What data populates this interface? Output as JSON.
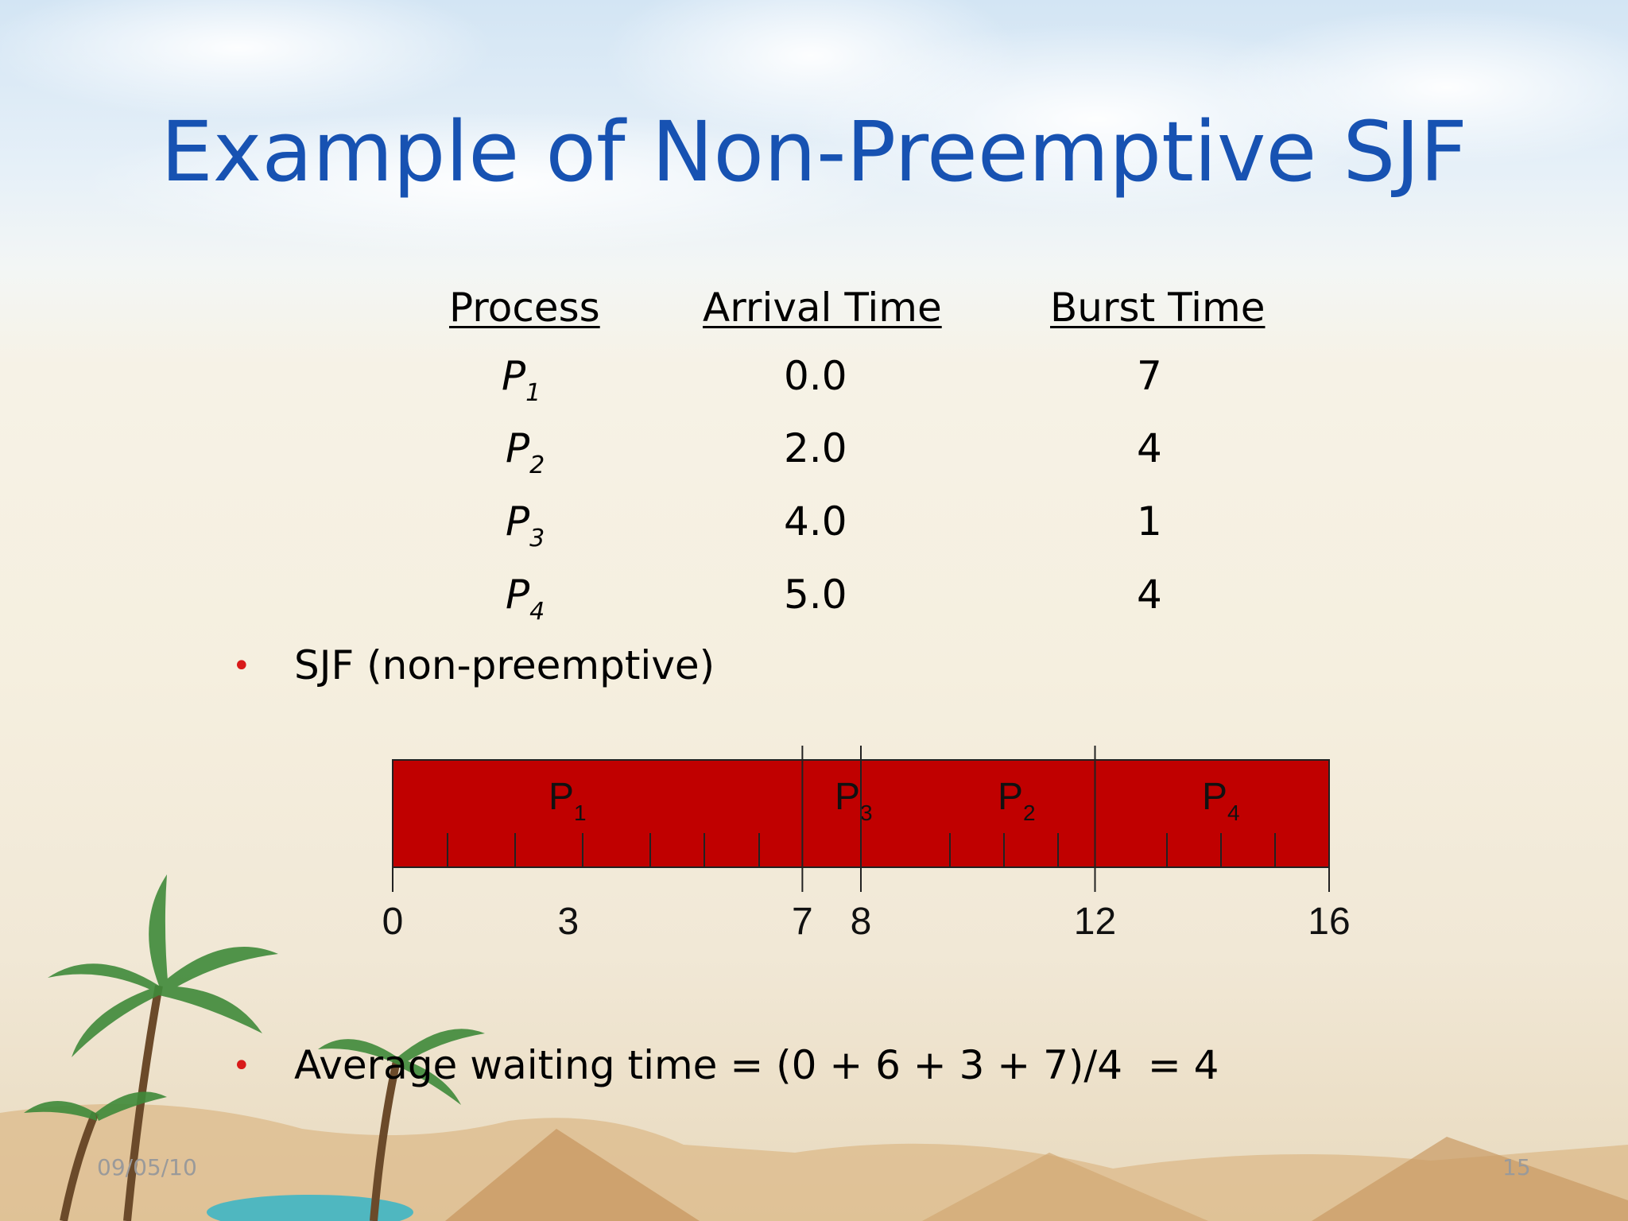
{
  "title": "Example of Non-Preemptive SJF",
  "table": {
    "headers": [
      "Process",
      "Arrival Time",
      "Burst Time"
    ],
    "rows": [
      {
        "name": "P",
        "sub": "1",
        "arrival": "0.0",
        "burst": "7"
      },
      {
        "name": "P",
        "sub": "2",
        "arrival": "2.0",
        "burst": "4"
      },
      {
        "name": "P",
        "sub": "3",
        "arrival": "4.0",
        "burst": "1"
      },
      {
        "name": "P",
        "sub": "4",
        "arrival": "5.0",
        "burst": "4"
      }
    ]
  },
  "bullets": [
    "SJF (non-preemptive)",
    "Average waiting time = (0 + 6 + 3 + 7)/4  = 4"
  ],
  "gantt": {
    "total": 16,
    "color": "#c00000",
    "segments": [
      {
        "name": "P",
        "sub": "1",
        "start": 0,
        "end": 7
      },
      {
        "name": "P",
        "sub": "3",
        "start": 7,
        "end": 8
      },
      {
        "name": "P",
        "sub": "2",
        "start": 8,
        "end": 12
      },
      {
        "name": "P",
        "sub": "4",
        "start": 12,
        "end": 16
      }
    ],
    "time_labels": [
      "0",
      "3",
      "7",
      "8",
      "12",
      "16"
    ],
    "time_values": [
      0,
      3,
      7,
      8,
      12,
      16
    ]
  },
  "footer": {
    "date": "09/05/10",
    "page": "15"
  },
  "colors": {
    "title": "#1752b2",
    "bullet": "#d81a1a",
    "bar": "#c00000"
  }
}
